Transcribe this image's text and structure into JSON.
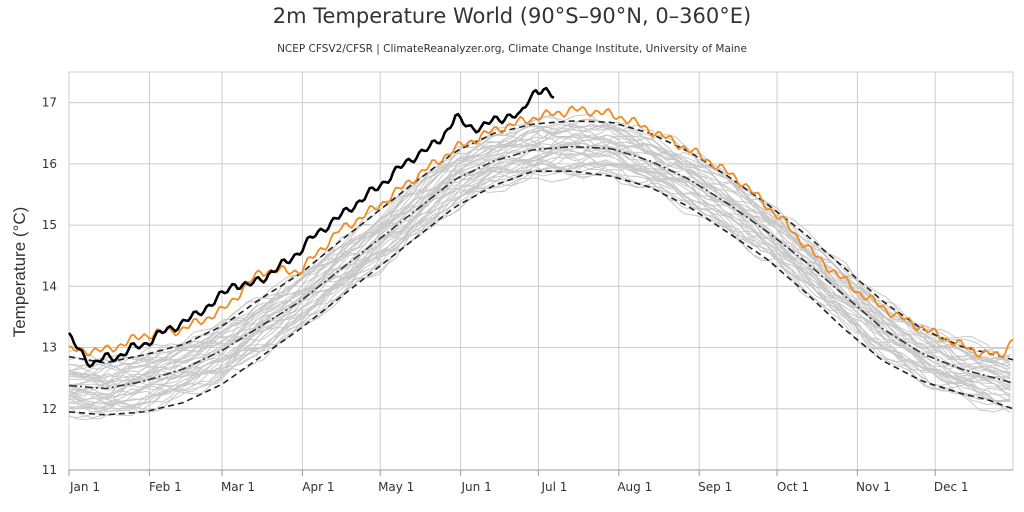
{
  "chart_data": {
    "type": "line",
    "title": "2m Temperature World (90°S–90°N, 0–360°E)",
    "subtitle": "NCEP CFSV2/CFSR | ClimateReanalyzer.org, Climate Change Institute, University of Maine",
    "ylabel": "Temperature (°C)",
    "xlabel": "",
    "ylim": [
      11,
      17.5
    ],
    "xlim": [
      1,
      365
    ],
    "yticks": [
      11,
      12,
      13,
      14,
      15,
      16,
      17
    ],
    "xticks": [
      {
        "label": "Jan 1",
        "day": 1
      },
      {
        "label": "Feb 1",
        "day": 32
      },
      {
        "label": "Mar 1",
        "day": 60
      },
      {
        "label": "Apr 1",
        "day": 91
      },
      {
        "label": "May 1",
        "day": 121
      },
      {
        "label": "Jun 1",
        "day": 152
      },
      {
        "label": "Jul 1",
        "day": 182
      },
      {
        "label": "Aug 1",
        "day": 213
      },
      {
        "label": "Sep 1",
        "day": 244
      },
      {
        "label": "Oct 1",
        "day": 274
      },
      {
        "label": "Nov 1",
        "day": 305
      },
      {
        "label": "Dec 1",
        "day": 335
      }
    ],
    "grid": true,
    "colors": {
      "current_year": "#000000",
      "previous_year": "#f28a1e",
      "past_years": "#c8c8c8",
      "mean": "#333333",
      "sigma_bounds": "#222222",
      "grid": "#cccccc"
    },
    "series": [
      {
        "style": "black-bold",
        "x": [
          1,
          5,
          10,
          15,
          20,
          25,
          30,
          35,
          40,
          45,
          50,
          55,
          60,
          65,
          70,
          75,
          80,
          85,
          90,
          95,
          100,
          105,
          110,
          115,
          120,
          125,
          130,
          135,
          140,
          145,
          150,
          155,
          160,
          165,
          170,
          175,
          178,
          181,
          185,
          188
        ],
        "values": [
          13.17,
          12.95,
          12.72,
          12.83,
          12.86,
          12.98,
          13.05,
          13.2,
          13.3,
          13.42,
          13.52,
          13.7,
          13.85,
          14.05,
          14.0,
          14.12,
          14.25,
          14.4,
          14.58,
          14.8,
          14.98,
          15.12,
          15.3,
          15.45,
          15.62,
          15.8,
          15.98,
          16.15,
          16.25,
          16.45,
          16.75,
          16.62,
          16.58,
          16.72,
          16.78,
          16.77,
          17.05,
          17.22,
          17.15,
          17.1
        ]
      },
      {
        "style": "orange",
        "x": [
          1,
          15,
          30,
          45,
          60,
          75,
          90,
          105,
          120,
          135,
          150,
          165,
          180,
          195,
          205,
          215,
          230,
          245,
          260,
          275,
          290,
          305,
          320,
          335,
          350,
          360,
          365
        ],
        "values": [
          12.95,
          12.95,
          13.2,
          13.3,
          13.6,
          14.25,
          14.25,
          14.9,
          15.3,
          15.8,
          16.25,
          16.55,
          16.75,
          16.88,
          16.85,
          16.75,
          16.45,
          16.12,
          15.72,
          15.12,
          14.45,
          13.92,
          13.52,
          13.22,
          12.95,
          12.85,
          13.15
        ]
      },
      {
        "style": "mean-dashdot",
        "x": [
          1,
          15,
          30,
          45,
          60,
          75,
          90,
          105,
          120,
          135,
          150,
          165,
          180,
          195,
          210,
          225,
          240,
          255,
          270,
          285,
          300,
          315,
          330,
          345,
          365
        ],
        "values": [
          12.38,
          12.33,
          12.45,
          12.65,
          12.95,
          13.35,
          13.75,
          14.25,
          14.75,
          15.25,
          15.75,
          16.05,
          16.23,
          16.28,
          16.25,
          16.05,
          15.75,
          15.35,
          14.9,
          14.4,
          13.85,
          13.3,
          12.9,
          12.65,
          12.42
        ]
      },
      {
        "style": "upper-bound-dashed",
        "x": [
          1,
          15,
          30,
          45,
          60,
          75,
          90,
          105,
          120,
          135,
          150,
          165,
          180,
          195,
          210,
          225,
          240,
          255,
          270,
          285,
          300,
          315,
          330,
          345,
          365
        ],
        "values": [
          12.85,
          12.75,
          12.88,
          13.05,
          13.35,
          13.8,
          14.2,
          14.72,
          15.22,
          15.72,
          16.2,
          16.5,
          16.65,
          16.7,
          16.68,
          16.5,
          16.2,
          15.8,
          15.35,
          14.85,
          14.3,
          13.75,
          13.3,
          13.02,
          12.8
        ]
      },
      {
        "style": "lower-bound-dashed",
        "x": [
          1,
          15,
          30,
          45,
          60,
          75,
          90,
          105,
          120,
          135,
          150,
          165,
          180,
          195,
          210,
          225,
          240,
          255,
          270,
          285,
          300,
          315,
          330,
          345,
          355,
          365
        ],
        "values": [
          11.95,
          11.9,
          11.95,
          12.1,
          12.4,
          12.85,
          13.3,
          13.8,
          14.3,
          14.8,
          15.3,
          15.65,
          15.88,
          15.88,
          15.8,
          15.62,
          15.3,
          14.88,
          14.45,
          13.9,
          13.3,
          12.78,
          12.45,
          12.25,
          12.15,
          12.0
        ]
      }
    ],
    "past_years_count": 42
  }
}
